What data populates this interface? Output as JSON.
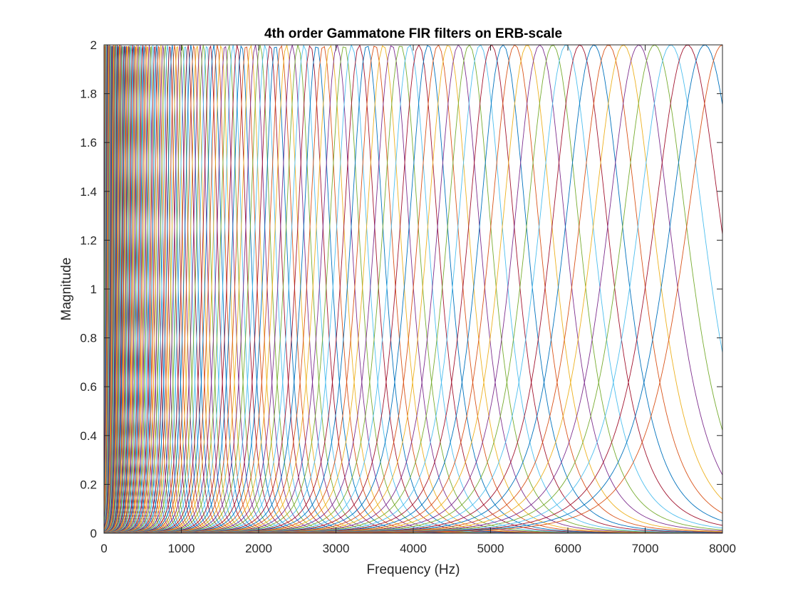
{
  "chart_data": {
    "type": "line",
    "title": "4th order Gammatone FIR filters on ERB-scale",
    "xlabel": "Frequency (Hz)",
    "ylabel": "Magnitude",
    "xlim": [
      0,
      8000
    ],
    "ylim": [
      0,
      2
    ],
    "xticks": [
      "0",
      "1000",
      "2000",
      "3000",
      "4000",
      "5000",
      "6000",
      "7000",
      "8000"
    ],
    "yticks": [
      "0",
      "0.2",
      "0.4",
      "0.6",
      "0.8",
      "1",
      "1.2",
      "1.4",
      "1.6",
      "1.8",
      "2"
    ],
    "grid": false,
    "legend": "none",
    "series_generation": {
      "filter_order": 4,
      "peak_magnitude": 2,
      "erb_scale_min_hz": 0,
      "erb_scale_max_hz": 8000,
      "number_of_filters": 128
    },
    "series_colors": [
      "#0072BD",
      "#D95319",
      "#EDB120",
      "#7E2F8E",
      "#77AC30",
      "#4DBEEE",
      "#A2142F"
    ]
  }
}
